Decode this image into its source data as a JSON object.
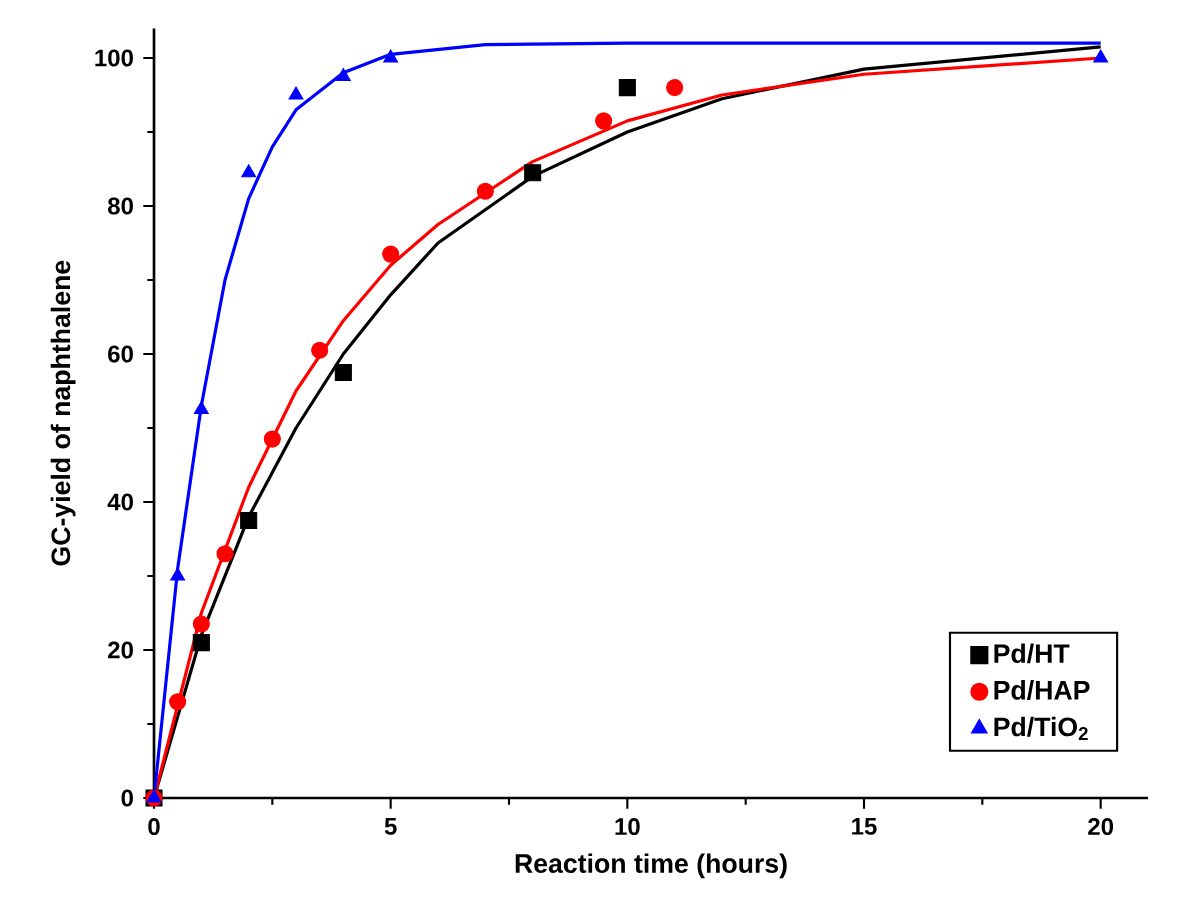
{
  "chart_data": {
    "type": "scatter",
    "xlabel": "Reaction time (hours)",
    "ylabel": "GC-yield of naphthalene",
    "xlim": [
      0,
      21
    ],
    "ylim": [
      0,
      104
    ],
    "xticks": [
      0,
      5,
      10,
      15,
      20
    ],
    "yticks": [
      0,
      20,
      40,
      60,
      80,
      100
    ],
    "grid": false,
    "legend": "bottom right",
    "series": [
      {
        "name": "Pd/HT",
        "color": "#000000",
        "marker": "square",
        "x": [
          0,
          1,
          2,
          4,
          8,
          10
        ],
        "values": [
          0,
          21,
          37.5,
          57.5,
          84.5,
          96
        ]
      },
      {
        "name": "Pd/HAP",
        "color": "#ff0000",
        "marker": "circle",
        "x": [
          0,
          0.5,
          1,
          1.5,
          2.5,
          3.5,
          5,
          7,
          9.5,
          11
        ],
        "values": [
          0,
          13,
          23.5,
          33,
          48.5,
          60.5,
          73.5,
          82,
          91.5,
          96
        ]
      },
      {
        "name": "Pd/TiO$_{2}$",
        "color": "#0000ff",
        "marker": "triangle",
        "x": [
          0,
          0.5,
          1,
          2,
          3,
          4,
          5,
          20
        ],
        "values": [
          0,
          30,
          52.5,
          84.5,
          95,
          97.5,
          100,
          100
        ]
      },
      {
        "type": "line",
        "color": "#000000",
        "marker": "none",
        "x": [
          0,
          1,
          2,
          3,
          4,
          5,
          6,
          8,
          10,
          12,
          15,
          20
        ],
        "values": [
          0,
          22,
          38,
          50,
          60,
          68,
          75,
          84,
          90,
          94.5,
          98.5,
          101.5
        ]
      },
      {
        "type": "line",
        "color": "#ff0000",
        "marker": "none",
        "x": [
          0,
          1,
          2,
          3,
          4,
          5,
          6,
          8,
          10,
          12,
          15,
          20
        ],
        "values": [
          0,
          25,
          42,
          55,
          64.5,
          72,
          77.5,
          86,
          91.5,
          95,
          97.8,
          100
        ]
      },
      {
        "type": "line",
        "color": "#0000ff",
        "marker": "none",
        "x": [
          0,
          0.5,
          1,
          1.5,
          2,
          2.5,
          3,
          4,
          5,
          7,
          10,
          20
        ],
        "values": [
          0,
          31,
          53,
          70,
          81,
          88,
          93,
          98,
          100.5,
          101.8,
          102,
          102
        ]
      }
    ]
  }
}
